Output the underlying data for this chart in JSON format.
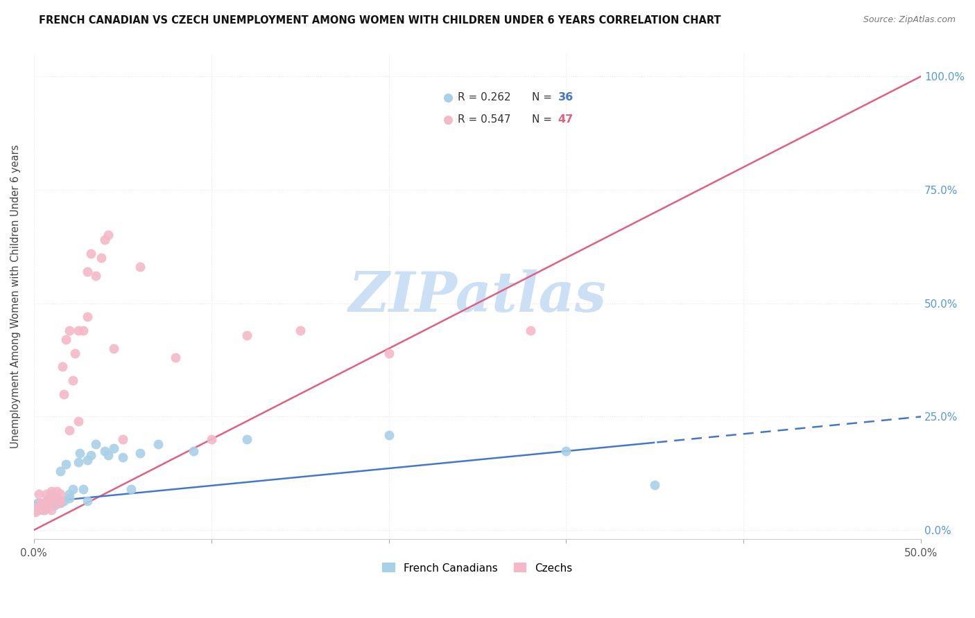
{
  "title": "FRENCH CANADIAN VS CZECH UNEMPLOYMENT AMONG WOMEN WITH CHILDREN UNDER 6 YEARS CORRELATION CHART",
  "source": "Source: ZipAtlas.com",
  "ylabel": "Unemployment Among Women with Children Under 6 years",
  "xlim": [
    0.0,
    0.5
  ],
  "ylim": [
    -0.02,
    1.05
  ],
  "fc_R": 0.262,
  "fc_N": 36,
  "cz_R": 0.547,
  "cz_N": 47,
  "fc_color": "#a8d0e8",
  "cz_color": "#f4b8c8",
  "fc_line_color": "#4477cc",
  "cz_line_color": "#e06080",
  "watermark": "ZIPatlas",
  "watermark_color": "#cce0f5",
  "grid_color": "#e8e8e8",
  "french_canadians_x": [
    0.0,
    0.002,
    0.003,
    0.005,
    0.007,
    0.008,
    0.01,
    0.01,
    0.012,
    0.013,
    0.015,
    0.015,
    0.017,
    0.018,
    0.02,
    0.02,
    0.022,
    0.025,
    0.026,
    0.028,
    0.03,
    0.03,
    0.032,
    0.035,
    0.04,
    0.042,
    0.045,
    0.05,
    0.055,
    0.06,
    0.07,
    0.09,
    0.12,
    0.2,
    0.3,
    0.35
  ],
  "french_canadians_y": [
    0.05,
    0.06,
    0.055,
    0.045,
    0.065,
    0.05,
    0.06,
    0.08,
    0.055,
    0.07,
    0.06,
    0.13,
    0.065,
    0.145,
    0.07,
    0.08,
    0.09,
    0.15,
    0.17,
    0.09,
    0.065,
    0.155,
    0.165,
    0.19,
    0.175,
    0.165,
    0.18,
    0.16,
    0.09,
    0.17,
    0.19,
    0.175,
    0.2,
    0.21,
    0.175,
    0.1
  ],
  "czechs_x": [
    0.0,
    0.001,
    0.002,
    0.003,
    0.003,
    0.004,
    0.005,
    0.005,
    0.006,
    0.007,
    0.007,
    0.008,
    0.009,
    0.01,
    0.01,
    0.01,
    0.012,
    0.013,
    0.014,
    0.015,
    0.015,
    0.016,
    0.017,
    0.018,
    0.02,
    0.02,
    0.022,
    0.023,
    0.025,
    0.025,
    0.028,
    0.03,
    0.03,
    0.032,
    0.035,
    0.038,
    0.04,
    0.042,
    0.045,
    0.05,
    0.06,
    0.08,
    0.1,
    0.12,
    0.15,
    0.2,
    0.28
  ],
  "czechs_y": [
    0.045,
    0.04,
    0.05,
    0.045,
    0.08,
    0.06,
    0.05,
    0.06,
    0.045,
    0.055,
    0.08,
    0.06,
    0.07,
    0.045,
    0.075,
    0.085,
    0.065,
    0.085,
    0.06,
    0.065,
    0.08,
    0.36,
    0.3,
    0.42,
    0.22,
    0.44,
    0.33,
    0.39,
    0.24,
    0.44,
    0.44,
    0.47,
    0.57,
    0.61,
    0.56,
    0.6,
    0.64,
    0.65,
    0.4,
    0.2,
    0.58,
    0.38,
    0.2,
    0.43,
    0.44,
    0.39,
    0.44
  ],
  "cz_line_slope": 2.0,
  "cz_line_intercept": 0.0,
  "fc_line_slope": 0.38,
  "fc_line_intercept": 0.06
}
